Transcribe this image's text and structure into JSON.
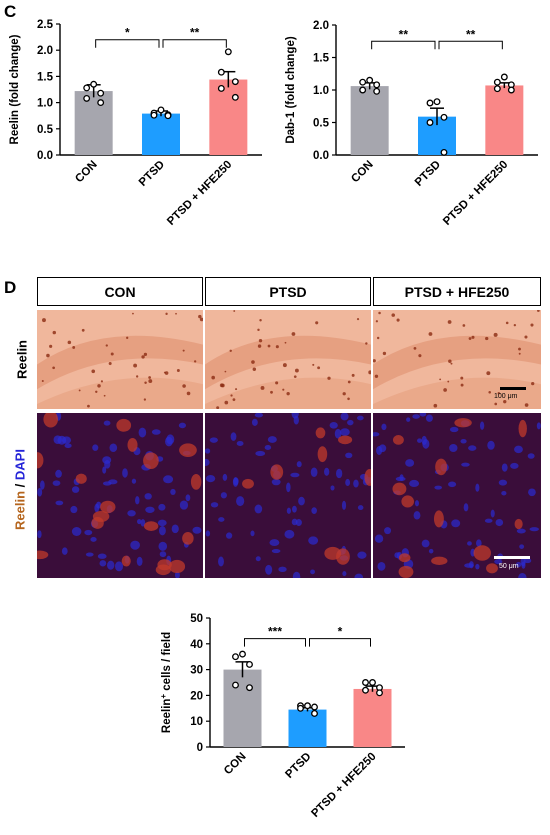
{
  "panels": {
    "c_letter": "C",
    "d_letter": "D"
  },
  "chart_data": [
    {
      "id": "reelin",
      "type": "bar",
      "categories": [
        "CON",
        "PTSD",
        "PTSD + HFE250"
      ],
      "values": [
        1.22,
        0.79,
        1.44
      ],
      "errors": [
        0.12,
        0.05,
        0.15
      ],
      "points": [
        [
          1.35,
          1.28,
          1.18,
          1.08,
          1.0
        ],
        [
          0.86,
          0.8,
          0.77,
          0.76,
          0.75
        ],
        [
          1.97,
          1.58,
          1.4,
          1.27,
          1.1
        ]
      ],
      "ylabel": "Reelin (fold change)",
      "ylim": [
        0,
        2.5
      ],
      "yticks": [
        "0.0",
        "0.5",
        "1.0",
        "1.5",
        "2.0",
        "2.5"
      ],
      "yticks_values": [
        0,
        0.5,
        1.0,
        1.5,
        2.0,
        2.5
      ],
      "colors": [
        "#a6a6ae",
        "#1e9dff",
        "#f98787"
      ],
      "significance": [
        {
          "from": 0,
          "to": 1,
          "label": "*",
          "y": 2.2
        },
        {
          "from": 1,
          "to": 2,
          "label": "**",
          "y": 2.2
        }
      ]
    },
    {
      "id": "dab1",
      "type": "bar",
      "categories": [
        "CON",
        "PTSD",
        "PTSD + HFE250"
      ],
      "values": [
        1.06,
        0.59,
        1.07
      ],
      "errors": [
        0.05,
        0.13,
        0.04
      ],
      "points": [
        [
          1.15,
          1.12,
          1.08,
          1.0,
          0.98
        ],
        [
          0.82,
          0.8,
          0.58,
          0.5,
          0.04
        ],
        [
          1.2,
          1.12,
          1.08,
          1.02,
          1.0
        ]
      ],
      "ylabel": "Dab-1 (fold change)",
      "ylim": [
        0,
        2.0
      ],
      "yticks": [
        "0.0",
        "0.5",
        "1.0",
        "1.5",
        "2.0"
      ],
      "yticks_values": [
        0,
        0.5,
        1.0,
        1.5,
        2.0
      ],
      "colors": [
        "#a6a6ae",
        "#1e9dff",
        "#f98787"
      ],
      "significance": [
        {
          "from": 0,
          "to": 1,
          "label": "**",
          "y": 1.75
        },
        {
          "from": 1,
          "to": 2,
          "label": "**",
          "y": 1.75
        }
      ]
    },
    {
      "id": "reelin_cells",
      "type": "bar",
      "categories": [
        "CON",
        "PTSD",
        "PTSD + HFE250"
      ],
      "values": [
        30,
        14.5,
        22.5
      ],
      "errors": [
        3.0,
        0.7,
        1.1
      ],
      "points": [
        [
          36,
          35,
          32,
          24,
          23
        ],
        [
          16,
          16,
          15.5,
          15,
          13
        ],
        [
          25,
          25,
          23,
          22,
          21
        ]
      ],
      "ylabel": "Reelin⁺ cells / field",
      "ylim": [
        0,
        50
      ],
      "yticks": [
        "0",
        "10",
        "20",
        "30",
        "40",
        "50"
      ],
      "yticks_values": [
        0,
        10,
        20,
        30,
        40,
        50
      ],
      "colors": [
        "#a6a6ae",
        "#1e9dff",
        "#f98787"
      ],
      "significance": [
        {
          "from": 0,
          "to": 1,
          "label": "***",
          "y": 42
        },
        {
          "from": 1,
          "to": 2,
          "label": "*",
          "y": 42
        }
      ]
    }
  ],
  "micrographs": {
    "columns": [
      "CON",
      "PTSD",
      "PTSD + HFE250"
    ],
    "row_labels": {
      "reelin": "Reelin",
      "if_reelin": "Reelin",
      "if_sep": " / ",
      "if_dapi": "DAPI"
    },
    "scale_bars": {
      "ihc": "100 μm",
      "if": "50 μm"
    },
    "colors": {
      "ihc_bg": "#f0b79c",
      "if_bg": "#3a0d3a",
      "reelin_red": "#c0392b",
      "dapi_blue": "#2b2bd0"
    }
  }
}
